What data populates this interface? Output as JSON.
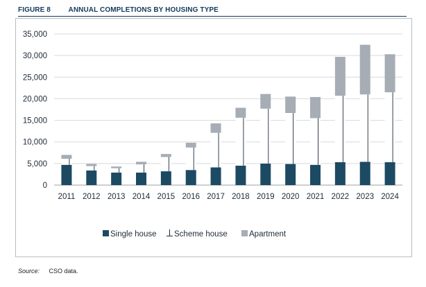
{
  "figure": {
    "number": "FIGURE 8",
    "title": "ANNUAL COMPLETIONS BY HOUSING TYPE"
  },
  "source": {
    "label": "Source:",
    "text": "CSO data."
  },
  "colors": {
    "single": "#1c4a63",
    "scheme": "#ffffff",
    "scheme_stroke": "#1c2a36",
    "apartment": "#a6adb4",
    "grid": "#d6d9dc",
    "accent": "#12395a"
  },
  "chart_data": {
    "type": "bar",
    "stacked": true,
    "categories": [
      "2011",
      "2012",
      "2013",
      "2014",
      "2015",
      "2016",
      "2017",
      "2018",
      "2019",
      "2020",
      "2021",
      "2022",
      "2023",
      "2024"
    ],
    "series": [
      {
        "name": "Single house",
        "values": [
          4700,
          3400,
          2900,
          2900,
          3200,
          3500,
          4100,
          4500,
          5000,
          4900,
          4700,
          5300,
          5400,
          5300
        ]
      },
      {
        "name": "Scheme house",
        "values": [
          1400,
          1000,
          1000,
          1900,
          3300,
          5200,
          8000,
          11100,
          12700,
          11800,
          10800,
          15400,
          15600,
          16200
        ]
      },
      {
        "name": "Apartment",
        "values": [
          900,
          500,
          400,
          600,
          700,
          1100,
          2200,
          2300,
          3400,
          3800,
          4900,
          9000,
          11500,
          8800
        ]
      }
    ],
    "yticks": [
      "0",
      "5,000",
      "10,000",
      "15,000",
      "20,000",
      "25,000",
      "30,000",
      "35,000"
    ],
    "ylim": [
      0,
      35000
    ],
    "grid": true,
    "legend_position": "bottom"
  }
}
